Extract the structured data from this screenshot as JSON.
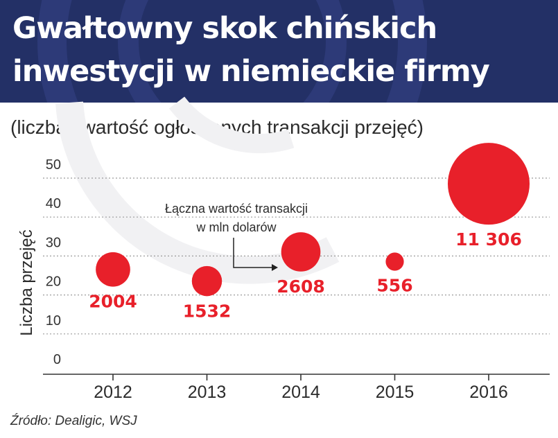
{
  "header": {
    "title_line1": "Gwałtowny skok chińskich",
    "title_line2": "inwestycji w niemieckie firmy",
    "background": "#233066"
  },
  "subtitle": "(liczba i wartość ogłoszonych transakcji przejęć)",
  "source": "Źródło: Dealigic, WSJ",
  "chart_data": {
    "type": "scatter",
    "categories": [
      "2012",
      "2013",
      "2014",
      "2015",
      "2016"
    ],
    "series": [
      {
        "y": [
          23,
          20,
          27.5,
          25,
          45
        ],
        "bubble_values": [
          2004,
          1532,
          2608,
          556,
          11306
        ],
        "value_labels": [
          "2004",
          "1532",
          "2608",
          "556",
          "11 306"
        ]
      }
    ],
    "ylabel": "Liczba przejęć",
    "ylim": [
      0,
      50
    ],
    "yticks": [
      "0",
      "10",
      "20",
      "30",
      "40",
      "50"
    ],
    "grid": true,
    "annotation": {
      "lines": [
        "Łączna wartość transakcji",
        "w mln dolarów"
      ]
    },
    "bubble_color": "#e8202a",
    "label_color": "#e8202a"
  }
}
